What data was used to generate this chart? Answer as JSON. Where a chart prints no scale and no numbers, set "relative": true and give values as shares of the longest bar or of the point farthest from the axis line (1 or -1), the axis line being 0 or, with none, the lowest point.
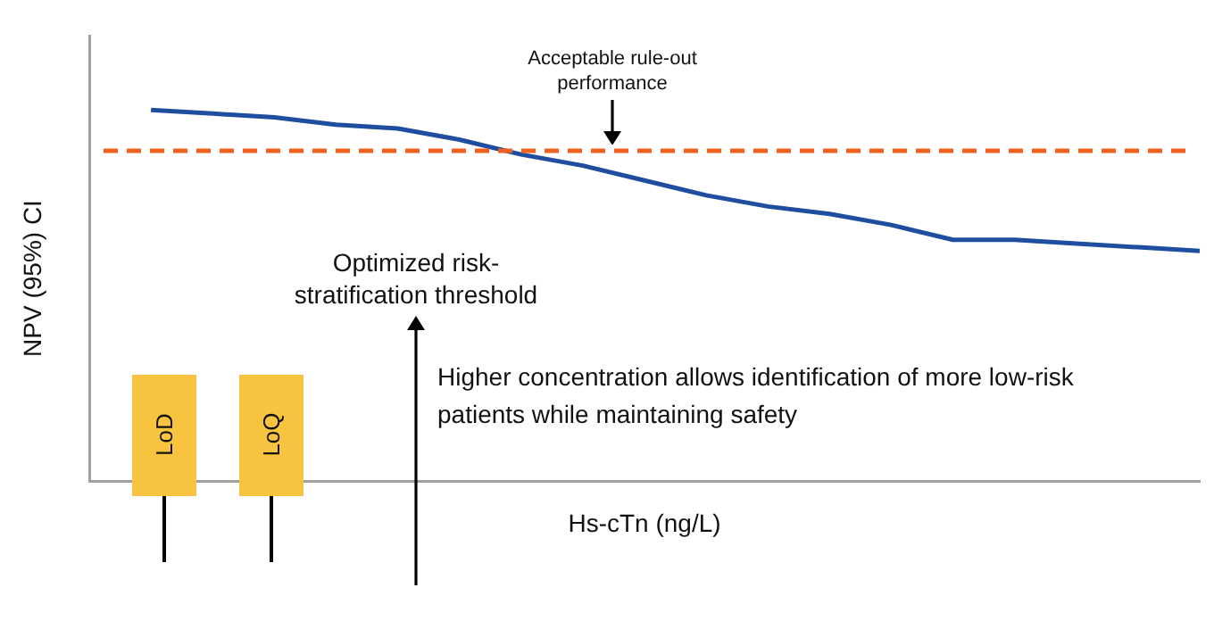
{
  "chart_data": {
    "type": "line",
    "relative": true,
    "xlabel": "Hs-cTn (ng/L)",
    "ylabel": "NPV (95%) CI",
    "categories": [
      null,
      null,
      null,
      null,
      null,
      null,
      null,
      null,
      null,
      null,
      null,
      null,
      null,
      null,
      null,
      null,
      null,
      null,
      null
    ],
    "series": [
      {
        "color": "#1f4ea0",
        "values": [
          null,
          1,
          0.99,
          0.98,
          0.96,
          0.95,
          0.92,
          0.88,
          0.85,
          0.81,
          0.77,
          0.74,
          0.72,
          0.69,
          0.65,
          0.65,
          0.64,
          0.63,
          0.62
        ]
      }
    ],
    "ref_lines": [
      {
        "axis": "y",
        "value": 0.89,
        "color": "#f0601f",
        "line_style": "dashed"
      }
    ],
    "annotations": [
      "Acceptable rule-out performance",
      "Optimized risk-stratification threshold",
      "Higher concentration allows identification of more low-risk patients while maintaining safety",
      "LoD",
      "LoQ"
    ],
    "grid": false,
    "legend": false,
    "marker": "none",
    "line_style": "solid"
  }
}
